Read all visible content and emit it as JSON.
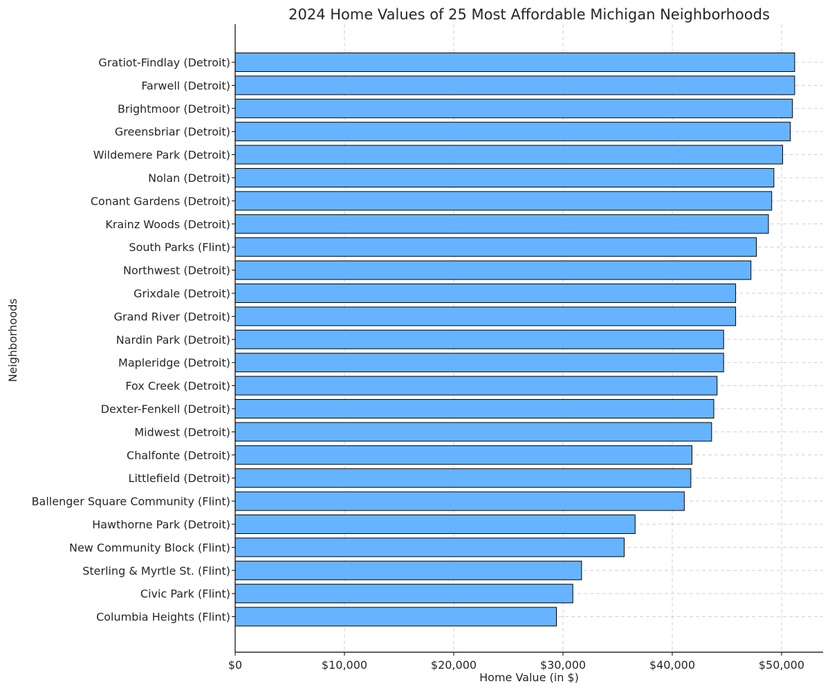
{
  "chart_data": {
    "type": "bar",
    "orientation": "horizontal",
    "title": "2024 Home Values of 25 Most Affordable Michigan Neighborhoods",
    "xlabel": "Home Value (in $)",
    "ylabel": "Neighborhoods",
    "xlim": [
      0,
      53800
    ],
    "xticks": [
      0,
      10000,
      20000,
      30000,
      40000,
      50000
    ],
    "xtick_labels": [
      "$0",
      "$10,000",
      "$20,000",
      "$30,000",
      "$40,000",
      "$50,000"
    ],
    "grid": true,
    "bar_color": "#66b3ff",
    "categories": [
      "Gratiot-Findlay (Detroit)",
      "Farwell (Detroit)",
      "Brightmoor (Detroit)",
      "Greensbriar (Detroit)",
      "Wildemere Park (Detroit)",
      "Nolan (Detroit)",
      "Conant Gardens (Detroit)",
      "Krainz Woods (Detroit)",
      "South Parks (Flint)",
      "Northwest (Detroit)",
      "Grixdale (Detroit)",
      "Grand River (Detroit)",
      "Nardin Park (Detroit)",
      "Mapleridge (Detroit)",
      "Fox Creek (Detroit)",
      "Dexter-Fenkell (Detroit)",
      "Midwest (Detroit)",
      "Chalfonte (Detroit)",
      "Littlefield (Detroit)",
      "Ballenger Square Community (Flint)",
      "Hawthorne Park (Detroit)",
      "New Community Block (Flint)",
      "Sterling & Myrtle St. (Flint)",
      "Civic Park (Flint)",
      "Columbia Heights (Flint)"
    ],
    "values": [
      51200,
      51200,
      51000,
      50800,
      50100,
      49300,
      49100,
      48800,
      47700,
      47200,
      45800,
      45800,
      44700,
      44700,
      44100,
      43800,
      43600,
      41800,
      41700,
      41100,
      36600,
      35600,
      31700,
      30900,
      29400
    ]
  }
}
